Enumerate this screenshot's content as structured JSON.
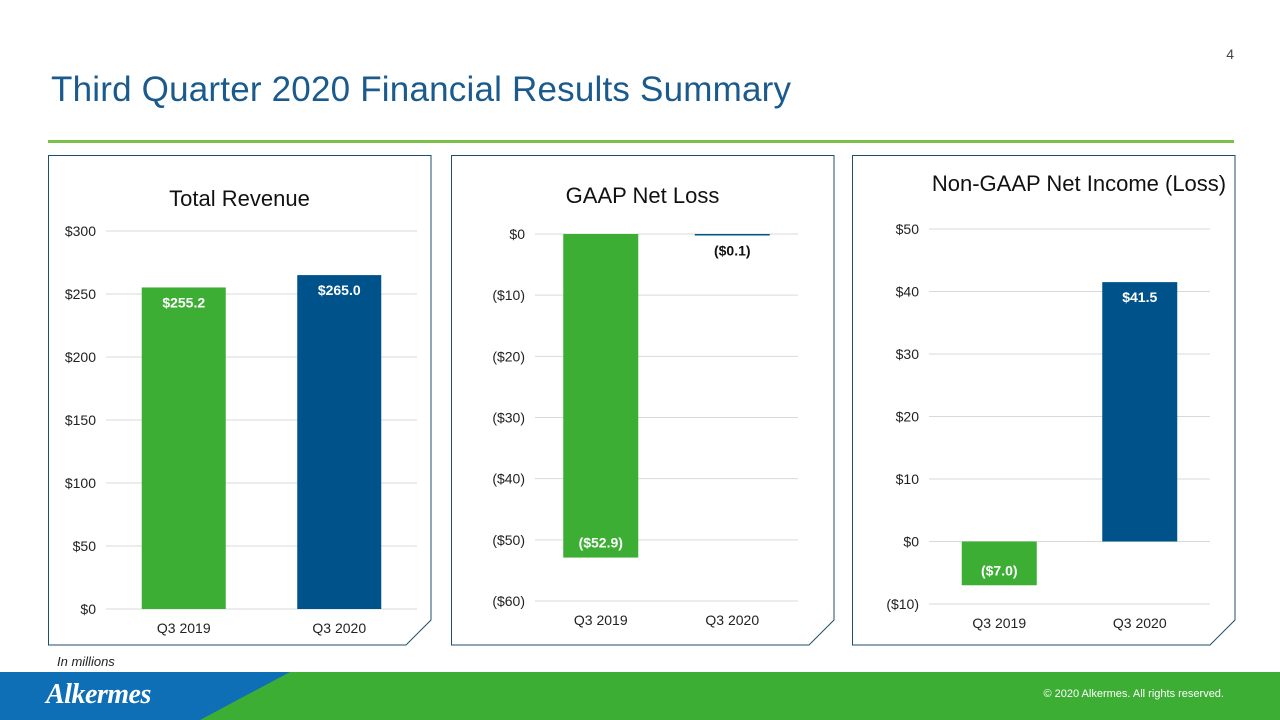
{
  "page": {
    "number": "4",
    "title": "Third Quarter 2020 Financial Results Summary",
    "footnote": "In millions",
    "logo_text": "Alkermes",
    "copyright": "© 2020 Alkermes. All rights reserved."
  },
  "colors": {
    "green": "#3dae34",
    "blue": "#00538a",
    "title": "#1b5a8c",
    "rule": "#7bc04a",
    "panel_border": "#1f4e68"
  },
  "chart_data": [
    {
      "type": "bar",
      "title": "Total Revenue",
      "categories": [
        "Q3 2019",
        "Q3 2020"
      ],
      "values": [
        255.2,
        265.0
      ],
      "data_labels": [
        "$255.2",
        "$265.0"
      ],
      "colors": [
        "#3dae34",
        "#00538a"
      ],
      "ylim": [
        0,
        300
      ],
      "yticks": [
        0,
        50,
        100,
        150,
        200,
        250,
        300
      ],
      "ytick_labels": [
        "$0",
        "$50",
        "$100",
        "$150",
        "$200",
        "$250",
        "$300"
      ],
      "grid": true,
      "legend": "none"
    },
    {
      "type": "bar",
      "title": "GAAP Net Loss",
      "categories": [
        "Q3 2019",
        "Q3 2020"
      ],
      "values": [
        -52.9,
        -0.1
      ],
      "data_labels": [
        "($52.9)",
        "($0.1)"
      ],
      "colors": [
        "#3dae34",
        "#00538a"
      ],
      "ylim": [
        -60,
        0
      ],
      "yticks": [
        0,
        -10,
        -20,
        -30,
        -40,
        -50,
        -60
      ],
      "ytick_labels": [
        "$0",
        "($10)",
        "($20)",
        "($30)",
        "($40)",
        "($50)",
        "($60)"
      ],
      "grid": true,
      "legend": "none"
    },
    {
      "type": "bar",
      "title": "Non-GAAP Net Income (Loss)",
      "categories": [
        "Q3 2019",
        "Q3 2020"
      ],
      "values": [
        -7.0,
        41.5
      ],
      "data_labels": [
        "($7.0)",
        "$41.5"
      ],
      "colors": [
        "#3dae34",
        "#00538a"
      ],
      "ylim": [
        -10,
        50
      ],
      "yticks": [
        -10,
        0,
        10,
        20,
        30,
        40,
        50
      ],
      "ytick_labels": [
        "($10)",
        "$0",
        "$10",
        "$20",
        "$30",
        "$40",
        "$50"
      ],
      "grid": true,
      "legend": "none"
    }
  ]
}
